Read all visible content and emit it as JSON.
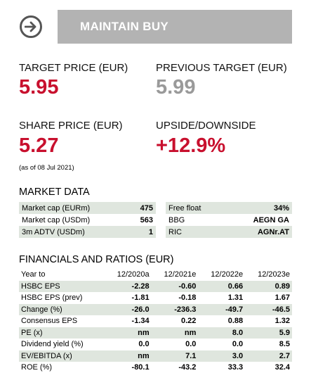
{
  "rating": {
    "label": "MAINTAIN BUY",
    "icon": "arrow-right-icon"
  },
  "target_price": {
    "label": "TARGET PRICE (EUR)",
    "value": "5.95"
  },
  "previous_target": {
    "label": "PREVIOUS TARGET (EUR)",
    "value": "5.99"
  },
  "share_price": {
    "label": "SHARE PRICE (EUR)",
    "value": "5.27",
    "as_of": "(as of 08 Jul 2021)"
  },
  "upside": {
    "label": "UPSIDE/DOWNSIDE",
    "value": "+12.9%"
  },
  "market_data": {
    "title": "MARKET DATA",
    "left": [
      {
        "label": "Market cap (EURm)",
        "value": "475"
      },
      {
        "label": "Market cap (USDm)",
        "value": "563"
      },
      {
        "label": "3m ADTV (USDm)",
        "value": "1"
      }
    ],
    "right": [
      {
        "label": "Free float",
        "value": "34%"
      },
      {
        "label": "BBG",
        "value": "AEGN GA"
      },
      {
        "label": "RIC",
        "value": "AGNr.AT"
      }
    ]
  },
  "financials": {
    "title": "FINANCIALS AND RATIOS (EUR)",
    "header": [
      "Year to",
      "12/2020a",
      "12/2021e",
      "12/2022e",
      "12/2023e"
    ],
    "rows": [
      {
        "label": "HSBC EPS",
        "values": [
          "-2.28",
          "-0.60",
          "0.66",
          "0.89"
        ]
      },
      {
        "label": "HSBC EPS (prev)",
        "values": [
          "-1.81",
          "-0.18",
          "1.31",
          "1.67"
        ]
      },
      {
        "label": "Change (%)",
        "values": [
          "-26.0",
          "-236.3",
          "-49.7",
          "-46.5"
        ]
      },
      {
        "label": "Consensus EPS",
        "values": [
          "-1.34",
          "0.22",
          "0.88",
          "1.32"
        ]
      },
      {
        "label": "PE (x)",
        "values": [
          "nm",
          "nm",
          "8.0",
          "5.9"
        ]
      },
      {
        "label": "Dividend yield (%)",
        "values": [
          "0.0",
          "0.0",
          "0.0",
          "8.5"
        ]
      },
      {
        "label": "EV/EBITDA (x)",
        "values": [
          "nm",
          "7.1",
          "3.0",
          "2.7"
        ]
      },
      {
        "label": "ROE (%)",
        "values": [
          "-80.1",
          "-43.2",
          "33.3",
          "32.4"
        ]
      }
    ]
  },
  "colors": {
    "accent_red": "#c8102e",
    "muted_grey": "#9a9a9a",
    "row_shade": "#dfe6de",
    "banner_grey": "#b3b3b3"
  }
}
